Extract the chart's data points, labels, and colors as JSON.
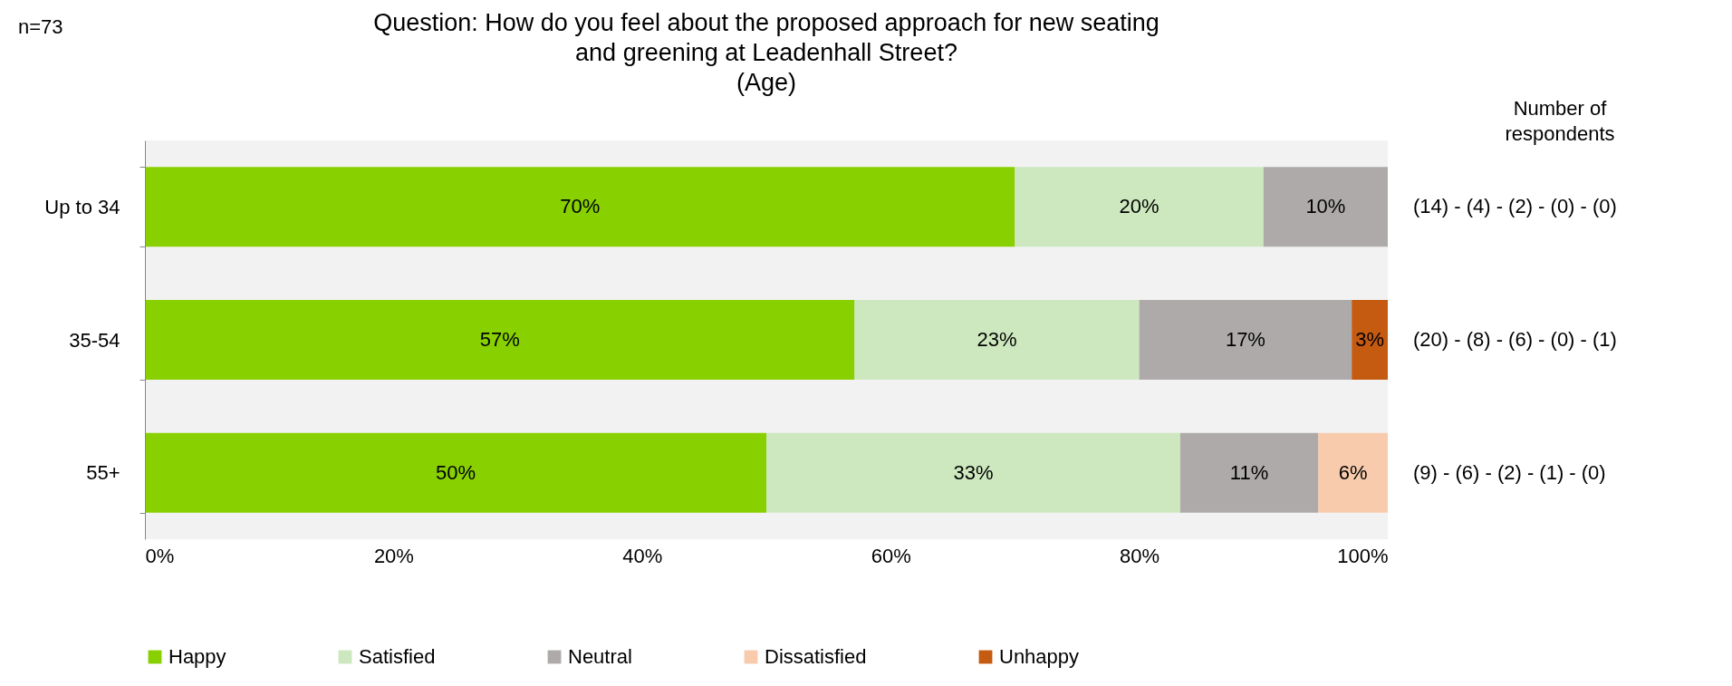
{
  "chart_data": {
    "type": "bar",
    "orientation": "horizontal",
    "stacked": true,
    "title": "Question: How do you feel about the proposed approach for new seating\nand greening at Leadenhall Street?\n(Age)",
    "categories": [
      "Up to 34",
      "35-54",
      "55+"
    ],
    "series": [
      {
        "name": "Happy",
        "color": "#88d000",
        "values": [
          70,
          57.1,
          50
        ],
        "value_labels": [
          "70%",
          "57%",
          "50%"
        ]
      },
      {
        "name": "Satisfied",
        "color": "#cde8be",
        "values": [
          20,
          22.9,
          33.3
        ],
        "value_labels": [
          "20%",
          "23%",
          "33%"
        ]
      },
      {
        "name": "Neutral",
        "color": "#aeaaaa",
        "values": [
          10,
          17.1,
          11.1
        ],
        "value_labels": [
          "10%",
          "17%",
          "11%"
        ]
      },
      {
        "name": "Dissatisfied",
        "color": "#f8cbad",
        "values": [
          0,
          0,
          5.6
        ],
        "value_labels": [
          null,
          null,
          "6%"
        ]
      },
      {
        "name": "Unhappy",
        "color": "#c55a11",
        "values": [
          0,
          2.9,
          0
        ],
        "value_labels": [
          null,
          "3%",
          null
        ]
      }
    ],
    "xlim": [
      0,
      100
    ],
    "xticks": [
      {
        "value": 0,
        "label": "0%"
      },
      {
        "value": 20,
        "label": "20%"
      },
      {
        "value": 40,
        "label": "40%"
      },
      {
        "value": 60,
        "label": "60%"
      },
      {
        "value": 80,
        "label": "80%"
      },
      {
        "value": 100,
        "label": "100%"
      }
    ],
    "grid": false,
    "legend": "bottom",
    "annotations": [
      "n=73",
      "Number of\nrespondents",
      "(14) - (4) - (2) - (0) - (0)",
      "(20) - (8) - (6) - (0) - (1)",
      "(9) - (6) - (2) - (1) - (0)"
    ]
  }
}
